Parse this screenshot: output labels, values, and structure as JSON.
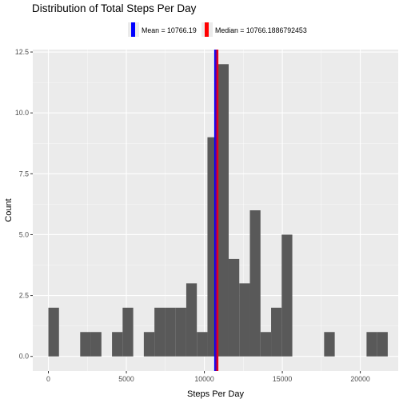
{
  "chart_data": {
    "type": "bar",
    "title": "Distribution of Total Steps Per Day",
    "xlabel": "Steps Per Day",
    "ylabel": "Count",
    "bin_width": 680,
    "bins": [
      {
        "x": 0,
        "count": 2
      },
      {
        "x": 680,
        "count": 0
      },
      {
        "x": 1360,
        "count": 0
      },
      {
        "x": 2040,
        "count": 1
      },
      {
        "x": 2720,
        "count": 1
      },
      {
        "x": 3400,
        "count": 0
      },
      {
        "x": 4080,
        "count": 1
      },
      {
        "x": 4760,
        "count": 2
      },
      {
        "x": 5440,
        "count": 0
      },
      {
        "x": 6120,
        "count": 1
      },
      {
        "x": 6800,
        "count": 2
      },
      {
        "x": 7480,
        "count": 2
      },
      {
        "x": 8160,
        "count": 2
      },
      {
        "x": 8840,
        "count": 3
      },
      {
        "x": 9520,
        "count": 1
      },
      {
        "x": 10200,
        "count": 9
      },
      {
        "x": 10880,
        "count": 12
      },
      {
        "x": 11560,
        "count": 4
      },
      {
        "x": 12240,
        "count": 3
      },
      {
        "x": 12920,
        "count": 6
      },
      {
        "x": 13600,
        "count": 1
      },
      {
        "x": 14280,
        "count": 2
      },
      {
        "x": 14960,
        "count": 5
      },
      {
        "x": 15640,
        "count": 0
      },
      {
        "x": 16320,
        "count": 0
      },
      {
        "x": 17000,
        "count": 0
      },
      {
        "x": 17680,
        "count": 1
      },
      {
        "x": 18360,
        "count": 0
      },
      {
        "x": 19040,
        "count": 0
      },
      {
        "x": 19720,
        "count": 0
      },
      {
        "x": 20400,
        "count": 1
      },
      {
        "x": 21080,
        "count": 1
      }
    ],
    "xlim": [
      -1000,
      22430
    ],
    "ylim": [
      -0.6,
      12.6
    ],
    "x_ticks": [
      0,
      5000,
      10000,
      15000,
      20000
    ],
    "x_tick_labels": [
      "0",
      "5000",
      "10000",
      "15000",
      "20000"
    ],
    "y_ticks": [
      0,
      2.5,
      5,
      7.5,
      10,
      12.5
    ],
    "y_tick_labels": [
      "0.0",
      "2.5",
      "5.0",
      "7.5",
      "10.0",
      "12.5"
    ],
    "reference_lines": [
      {
        "label": "Mean = 10766.19",
        "value": 10766.19,
        "color": "#0000ff"
      },
      {
        "label": "Median = 10766.1886792453",
        "value": 10766.1886792453,
        "color": "#ff0000"
      }
    ],
    "legend_position": "top",
    "grid": true,
    "colors": {
      "bar": "#595959",
      "panel": "#ebebeb",
      "grid_major": "#ffffff",
      "overlap_line": "#800080"
    }
  }
}
